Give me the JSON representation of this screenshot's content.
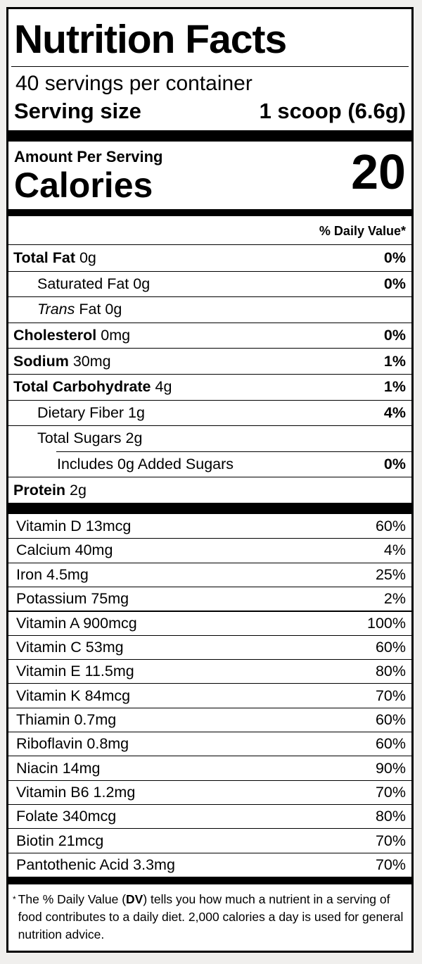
{
  "page": {
    "background": "#f0efed",
    "label_background": "#ffffff",
    "text_color": "#000000"
  },
  "label": {
    "title": "Nutrition Facts",
    "servings_per_container": "40 servings per container",
    "serving_size": {
      "label": "Serving size",
      "value": "1 scoop (6.6g)"
    },
    "amount_per_serving": "Amount Per Serving",
    "calories": {
      "label": "Calories",
      "value": "20"
    },
    "daily_value_header": "% Daily Value*",
    "macronutrients": [
      {
        "name": "Total Fat",
        "amount": "0g",
        "dv": "0%",
        "style": "bold",
        "indent": 0,
        "rule": "full"
      },
      {
        "name": "Saturated Fat",
        "amount": "0g",
        "dv": "0%",
        "style": "regular",
        "indent": 1,
        "rule": "full"
      },
      {
        "name_italic": "Trans",
        "name": "Fat",
        "amount": "0g",
        "dv": "",
        "style": "regular",
        "indent": 1,
        "rule": "full"
      },
      {
        "name": "Cholesterol",
        "amount": "0mg",
        "dv": "0%",
        "style": "bold",
        "indent": 0,
        "rule": "full"
      },
      {
        "name": "Sodium",
        "amount": "30mg",
        "dv": "1%",
        "style": "bold",
        "indent": 0,
        "rule": "full"
      },
      {
        "name": "Total Carbohydrate",
        "amount": "4g",
        "dv": "1%",
        "style": "bold",
        "indent": 0,
        "rule": "full"
      },
      {
        "name": "Dietary Fiber",
        "amount": "1g",
        "dv": "4%",
        "style": "regular",
        "indent": 1,
        "rule": "full"
      },
      {
        "name": "Total Sugars",
        "amount": "2g",
        "dv": "",
        "style": "regular",
        "indent": 1,
        "rule": "full"
      },
      {
        "name": "Includes 0g Added Sugars",
        "amount": "",
        "dv": "0%",
        "style": "regular",
        "indent": 2,
        "rule": "indent"
      },
      {
        "name": "Protein",
        "amount": "2g",
        "dv": "",
        "style": "bold",
        "indent": 0,
        "rule": "full"
      }
    ],
    "micronutrients": [
      {
        "name": "Vitamin D",
        "amount": "13mcg",
        "dv": "60%",
        "rule": "full"
      },
      {
        "name": "Calcium",
        "amount": "40mg",
        "dv": "4%",
        "rule": "full"
      },
      {
        "name": "Iron",
        "amount": "4.5mg",
        "dv": "25%",
        "rule": "full"
      },
      {
        "name": "Potassium",
        "amount": "75mg",
        "dv": "2%",
        "rule": "full"
      },
      {
        "name": "Vitamin A",
        "amount": "900mcg",
        "dv": "100%",
        "rule": "medium"
      },
      {
        "name": "Vitamin C",
        "amount": "53mg",
        "dv": "60%",
        "rule": "full"
      },
      {
        "name": "Vitamin E",
        "amount": "11.5mg",
        "dv": "80%",
        "rule": "full"
      },
      {
        "name": "Vitamin K",
        "amount": "84mcg",
        "dv": "70%",
        "rule": "full"
      },
      {
        "name": "Thiamin",
        "amount": "0.7mg",
        "dv": "60%",
        "rule": "full"
      },
      {
        "name": "Riboflavin",
        "amount": "0.8mg",
        "dv": "60%",
        "rule": "full"
      },
      {
        "name": "Niacin",
        "amount": "14mg",
        "dv": "90%",
        "rule": "full"
      },
      {
        "name": "Vitamin B6",
        "amount": "1.2mg",
        "dv": "70%",
        "rule": "full"
      },
      {
        "name": "Folate",
        "amount": "340mcg",
        "dv": "80%",
        "rule": "full"
      },
      {
        "name": "Biotin",
        "amount": "21mcg",
        "dv": "70%",
        "rule": "full"
      },
      {
        "name": "Pantothenic Acid",
        "amount": "3.3mg",
        "dv": "70%",
        "rule": "full"
      }
    ],
    "footnote": {
      "marker": "*",
      "text_before": "The % Daily Value (",
      "text_bold": "DV",
      "text_after": ") tells you how much a nutrient in a serving of food contributes to a daily diet. 2,000 calories a day is used for general nutrition advice."
    }
  }
}
